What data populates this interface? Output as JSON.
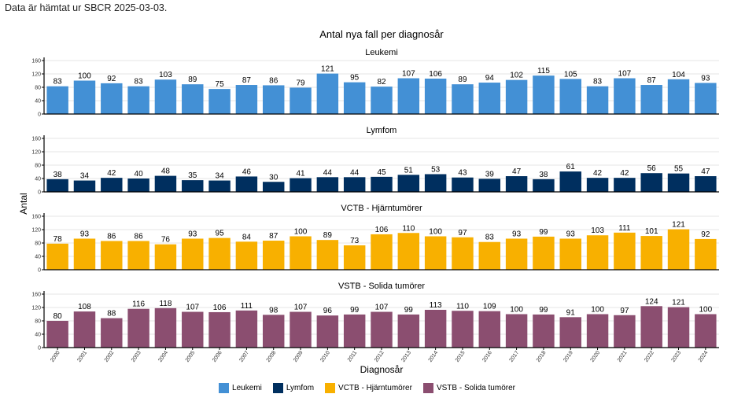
{
  "source_note": "Data är hämtat ur SBCR 2025-03-03.",
  "chart_data": {
    "type": "bar",
    "title": "Antal nya fall per diagnosår",
    "xlabel": "Diagnosår",
    "ylabel": "Antal",
    "ylim": [
      0,
      160
    ],
    "yticks": [
      0,
      40,
      80,
      120,
      160
    ],
    "grid": true,
    "legend_position": "bottom",
    "categories": [
      "2000",
      "2001",
      "2002",
      "2003",
      "2004",
      "2005",
      "2006",
      "2007",
      "2008",
      "2009",
      "2010",
      "2011",
      "2012",
      "2013",
      "2014",
      "2015",
      "2016",
      "2017",
      "2018",
      "2019",
      "2020",
      "2021",
      "2022",
      "2023",
      "2024"
    ],
    "series": [
      {
        "name": "Leukemi",
        "panel_title": "Leukemi",
        "color": "#4390d5",
        "values": [
          83,
          100,
          92,
          83,
          103,
          89,
          75,
          87,
          86,
          79,
          121,
          95,
          82,
          107,
          106,
          89,
          94,
          102,
          115,
          105,
          83,
          107,
          87,
          104,
          93
        ]
      },
      {
        "name": "Lymfom",
        "panel_title": "Lymfom",
        "color": "#002f5f",
        "values": [
          38,
          34,
          42,
          40,
          48,
          35,
          34,
          46,
          30,
          41,
          44,
          44,
          45,
          51,
          53,
          43,
          39,
          47,
          38,
          61,
          42,
          42,
          56,
          55,
          47
        ]
      },
      {
        "name": "VCTB - Hjärntumörer",
        "panel_title": "VCTB - Hjärntumörer",
        "color": "#f8b000",
        "values": [
          78,
          93,
          86,
          86,
          76,
          93,
          95,
          84,
          87,
          100,
          89,
          73,
          106,
          110,
          100,
          97,
          83,
          93,
          99,
          93,
          103,
          111,
          101,
          121,
          92
        ]
      },
      {
        "name": "VSTB - Solida tumörer",
        "panel_title": "VSTB - Solida tumörer",
        "color": "#8b4e70",
        "values": [
          80,
          108,
          88,
          116,
          118,
          107,
          106,
          111,
          98,
          107,
          96,
          99,
          107,
          99,
          113,
          110,
          109,
          100,
          99,
          91,
          100,
          97,
          124,
          121,
          100
        ]
      }
    ]
  }
}
